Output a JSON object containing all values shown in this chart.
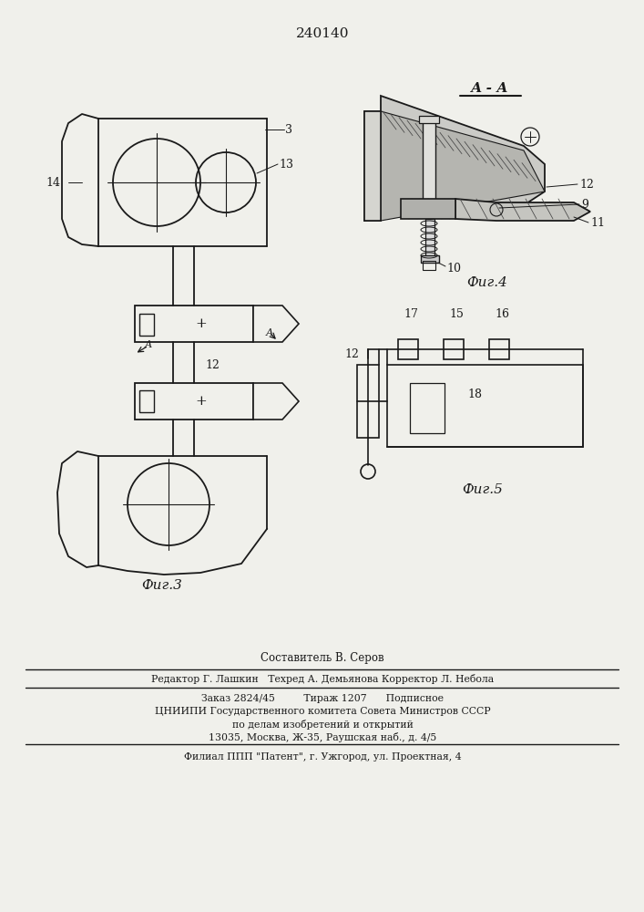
{
  "patent_number": "240140",
  "bg_color": "#f0f0eb",
  "line_color": "#1a1a1a",
  "fig3_label": "Фиг.3",
  "fig4_label": "Фиг.4",
  "fig5_label": "Фиг.5",
  "section_label": "А - А",
  "footer_line1": "Составитель В. Серов",
  "footer_line2": "Редактор Г. Лашкин   Техред А. Демьянова Корректор Л. Небола",
  "footer_line3": "Заказ 2824/45         Тираж 1207      Подписное",
  "footer_line4": "ЦНИИПИ Государственного комитета Совета Министров СССР",
  "footer_line5": "по делам изобретений и открытий",
  "footer_line6": "13035, Москва, Ж-35, Раушская наб., д. 4/5",
  "footer_line7": "Филиал ППП \"Патент\", г. Ужгород, ул. Проектная, 4"
}
